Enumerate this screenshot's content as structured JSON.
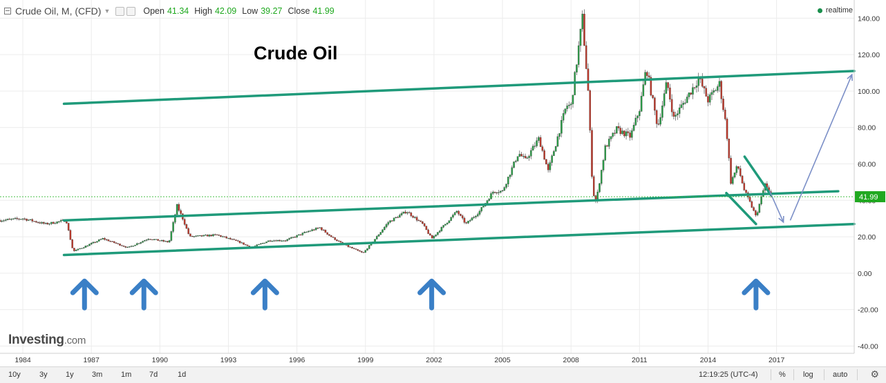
{
  "header": {
    "symbol": "Crude Oil, M, (CFD)",
    "open_label": "Open",
    "open_value": "41.34",
    "high_label": "High",
    "high_value": "42.09",
    "low_label": "Low",
    "low_value": "39.27",
    "close_label": "Close",
    "close_value": "41.99",
    "realtime_label": "realtime"
  },
  "annotation_title": "Crude Oil",
  "logo": {
    "main": "Investing",
    "suffix": ".com"
  },
  "toolbar": {
    "ranges": [
      "10y",
      "3y",
      "1y",
      "3m",
      "1m",
      "7d",
      "1d"
    ],
    "time": "12:19:25 (UTC-4)",
    "percent": "%",
    "log": "log",
    "auto": "auto"
  },
  "colors": {
    "up": "#2a9e47",
    "down": "#c0392b",
    "trend": "#1f9a7a",
    "arrow": "#3a7fc6",
    "projection": "#7b8fc7",
    "price_label_bg": "#20a820"
  },
  "chart_data": {
    "type": "candlestick",
    "title": "Crude Oil",
    "interval": "Monthly",
    "y_ticks": [
      -40,
      -20,
      0,
      20,
      40,
      60,
      80,
      100,
      120,
      140
    ],
    "y_tick_labels": [
      "-40.00",
      "-20.00",
      "0.00",
      "20.00",
      "40.00",
      "60.00",
      "80.00",
      "100.00",
      "120.00",
      "140.00"
    ],
    "ylim": [
      -44,
      150
    ],
    "x_ticks": [
      1984,
      1987,
      1990,
      1993,
      1996,
      1999,
      2002,
      2005,
      2008,
      2011,
      2014,
      2017
    ],
    "xlim": [
      1983.0,
      2020.4
    ],
    "last_price": 41.99,
    "last_price_label": "41.99",
    "price_path": [
      [
        1983.0,
        29
      ],
      [
        1984.0,
        30
      ],
      [
        1985.0,
        27
      ],
      [
        1985.9,
        29
      ],
      [
        1986.2,
        12
      ],
      [
        1986.6,
        14
      ],
      [
        1987.5,
        19
      ],
      [
        1988.6,
        14
      ],
      [
        1989.5,
        19
      ],
      [
        1990.4,
        17
      ],
      [
        1990.75,
        37
      ],
      [
        1991.0,
        30
      ],
      [
        1991.3,
        20
      ],
      [
        1992.5,
        21
      ],
      [
        1993.5,
        17
      ],
      [
        1994.0,
        14
      ],
      [
        1994.8,
        18
      ],
      [
        1995.5,
        18
      ],
      [
        1996.5,
        23
      ],
      [
        1997.0,
        25
      ],
      [
        1997.5,
        20
      ],
      [
        1998.0,
        16
      ],
      [
        1998.9,
        11
      ],
      [
        1999.5,
        20
      ],
      [
        2000.0,
        28
      ],
      [
        2000.8,
        34
      ],
      [
        2001.5,
        27
      ],
      [
        2001.9,
        19
      ],
      [
        2002.5,
        27
      ],
      [
        2003.0,
        34
      ],
      [
        2003.4,
        27
      ],
      [
        2004.0,
        34
      ],
      [
        2004.6,
        45
      ],
      [
        2005.0,
        45
      ],
      [
        2005.7,
        66
      ],
      [
        2006.0,
        62
      ],
      [
        2006.6,
        74
      ],
      [
        2007.0,
        56
      ],
      [
        2007.8,
        92
      ],
      [
        2008.0,
        92
      ],
      [
        2008.5,
        140
      ],
      [
        2008.75,
        100
      ],
      [
        2008.95,
        45
      ],
      [
        2009.1,
        39
      ],
      [
        2009.5,
        69
      ],
      [
        2010.0,
        79
      ],
      [
        2010.6,
        75
      ],
      [
        2011.0,
        90
      ],
      [
        2011.3,
        113
      ],
      [
        2011.8,
        80
      ],
      [
        2012.2,
        105
      ],
      [
        2012.5,
        85
      ],
      [
        2013.0,
        95
      ],
      [
        2013.6,
        107
      ],
      [
        2014.0,
        95
      ],
      [
        2014.5,
        104
      ],
      [
        2014.8,
        80
      ],
      [
        2015.0,
        50
      ],
      [
        2015.3,
        59
      ],
      [
        2015.6,
        45
      ],
      [
        2015.9,
        37
      ],
      [
        2016.1,
        31
      ],
      [
        2016.5,
        49
      ],
      [
        2016.75,
        42
      ]
    ],
    "trendlines": [
      {
        "from": [
          1985.8,
          93
        ],
        "to": [
          2020.4,
          111
        ]
      },
      {
        "from": [
          1985.8,
          29
        ],
        "to": [
          2019.7,
          45
        ]
      },
      {
        "from": [
          1985.8,
          10
        ],
        "to": [
          2020.4,
          27
        ]
      },
      {
        "from": [
          2015.6,
          64
        ],
        "to": [
          2016.75,
          43
        ]
      },
      {
        "from": [
          2014.8,
          44
        ],
        "to": [
          2016.1,
          27
        ]
      }
    ],
    "projection_arrows": [
      {
        "from": [
          2016.7,
          45
        ],
        "to": [
          2017.3,
          28
        ]
      },
      {
        "from": [
          2017.6,
          29
        ],
        "to": [
          2020.3,
          109
        ]
      }
    ],
    "support_arrows_x": [
      1986.7,
      1989.3,
      1994.6,
      2001.9,
      2016.1
    ],
    "support_arrows_y": -10
  }
}
